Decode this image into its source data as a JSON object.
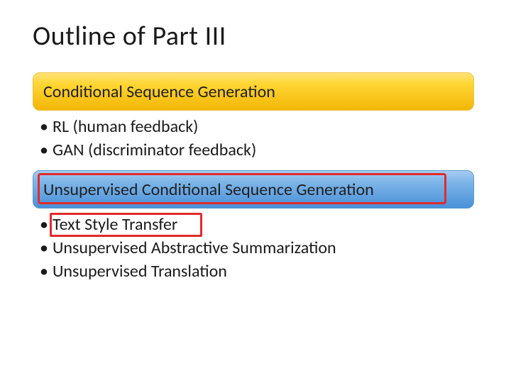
{
  "slide": {
    "title": "Outline of Part III",
    "background_color": "#ffffff",
    "title_fontsize": 38,
    "title_color": "#1a1a1a"
  },
  "section1": {
    "header": "Conditional Sequence Generation",
    "header_gradient": [
      "#ffe27a",
      "#ffd633",
      "#f2b606"
    ],
    "header_border": "#f0c040",
    "header_fontsize": 24,
    "bullets": [
      "RL (human feedback)",
      "GAN (discriminator feedback)"
    ],
    "bullet_fontsize": 24,
    "highlighted": false
  },
  "section2": {
    "header": "Unsupervised Conditional Sequence Generation",
    "header_gradient": [
      "#a7cbf2",
      "#7db5e8",
      "#4a90d9"
    ],
    "header_border": "#5a9acc",
    "header_fontsize": 24,
    "bullets": [
      "Text Style Transfer",
      "Unsupervised Abstractive Summarization",
      "Unsupervised Translation"
    ],
    "bullet_fontsize": 24,
    "highlighted": true,
    "highlight_color": "#e22b2b",
    "highlighted_bullet_index": 0
  }
}
